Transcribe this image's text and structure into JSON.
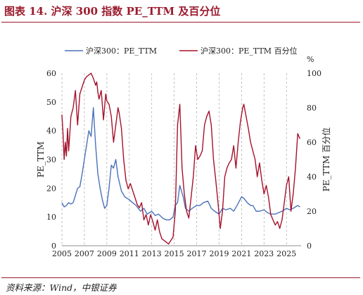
{
  "header": {
    "title": "图表 14. 沪深 300 指数 PE_TTM 及百分位"
  },
  "footer": {
    "source": "资料来源：Wind，中银证券"
  },
  "colors": {
    "accent": "#9b1c2e",
    "pe": "#4a72b8",
    "pct": "#a5122c",
    "grid": "#b3b3b3"
  },
  "chart_data": {
    "type": "line",
    "legend_position": "top-left",
    "grid": true,
    "xlim": [
      2005,
      2026.3
    ],
    "x_ticks": [
      "2005",
      "2007",
      "2009",
      "2011",
      "2013",
      "2015",
      "2017",
      "2019",
      "2021",
      "2023",
      "2025"
    ],
    "ylabel": "PE_TTM",
    "ylim": [
      0,
      60
    ],
    "y_ticks": [
      "0",
      "10",
      "20",
      "30",
      "40",
      "50",
      "60"
    ],
    "y2label": "PE_TTM 百分位",
    "y2unit": "%",
    "y2lim": [
      0,
      100
    ],
    "y2_ticks": [
      "0",
      "20",
      "40",
      "60",
      "80",
      "100"
    ],
    "series": [
      {
        "name": "沪深300：PE_TTM",
        "axis": "left",
        "x": [
          2005.0,
          2005.2,
          2005.4,
          2005.6,
          2005.8,
          2006.0,
          2006.2,
          2006.4,
          2006.6,
          2006.8,
          2007.0,
          2007.2,
          2007.4,
          2007.6,
          2007.8,
          2008.0,
          2008.2,
          2008.4,
          2008.6,
          2008.8,
          2009.0,
          2009.2,
          2009.4,
          2009.6,
          2009.8,
          2010.0,
          2010.3,
          2010.6,
          2011.0,
          2011.3,
          2011.6,
          2012.0,
          2012.3,
          2012.6,
          2013.0,
          2013.3,
          2013.6,
          2014.0,
          2014.3,
          2014.6,
          2014.9,
          2015.1,
          2015.3,
          2015.5,
          2015.8,
          2016.0,
          2016.3,
          2016.6,
          2017.0,
          2017.3,
          2017.6,
          2018.0,
          2018.3,
          2018.6,
          2019.0,
          2019.3,
          2019.6,
          2020.0,
          2020.3,
          2020.6,
          2021.0,
          2021.2,
          2021.5,
          2021.8,
          2022.0,
          2022.3,
          2022.6,
          2023.0,
          2023.3,
          2023.6,
          2024.0,
          2024.3,
          2024.6,
          2024.8,
          2025.0,
          2025.3,
          2025.6,
          2026.0,
          2026.2
        ],
        "values": [
          15,
          13.5,
          14,
          15,
          14.5,
          15,
          17.5,
          20,
          20.5,
          25,
          30,
          35,
          40,
          38,
          48,
          35,
          25,
          20,
          16,
          13,
          14,
          20,
          28,
          27,
          30,
          24,
          19,
          17,
          16,
          15,
          14,
          12,
          13,
          11,
          12,
          10.5,
          11,
          9.5,
          9,
          9,
          10,
          14,
          15,
          21,
          17,
          13,
          12,
          13,
          14,
          14,
          15,
          15.5,
          13,
          12,
          11,
          13,
          12.5,
          13,
          12,
          14,
          17,
          16.5,
          15,
          14,
          14,
          12,
          12,
          12.5,
          11.5,
          11,
          11,
          11.5,
          12,
          12.5,
          13,
          12.5,
          13,
          14,
          13.5
        ]
      },
      {
        "name": "沪深300：PE_TTM 百分位",
        "axis": "right",
        "x": [
          2005.0,
          2005.1,
          2005.2,
          2005.3,
          2005.4,
          2005.5,
          2005.6,
          2005.8,
          2006.0,
          2006.2,
          2006.4,
          2006.6,
          2006.8,
          2007.0,
          2007.2,
          2007.4,
          2007.6,
          2007.8,
          2008.0,
          2008.1,
          2008.2,
          2008.3,
          2008.5,
          2008.7,
          2008.9,
          2009.0,
          2009.2,
          2009.4,
          2009.6,
          2009.8,
          2010.0,
          2010.1,
          2010.3,
          2010.5,
          2010.7,
          2010.9,
          2011.1,
          2011.3,
          2011.5,
          2011.7,
          2011.9,
          2012.1,
          2012.3,
          2012.5,
          2012.7,
          2012.9,
          2013.1,
          2013.3,
          2013.5,
          2013.7,
          2013.9,
          2014.1,
          2014.3,
          2014.5,
          2014.7,
          2014.9,
          2015.1,
          2015.3,
          2015.5,
          2015.7,
          2015.9,
          2016.1,
          2016.3,
          2016.5,
          2016.7,
          2016.9,
          2017.1,
          2017.3,
          2017.5,
          2017.7,
          2017.9,
          2018.1,
          2018.3,
          2018.5,
          2018.7,
          2018.9,
          2019.1,
          2019.3,
          2019.5,
          2019.7,
          2019.9,
          2020.1,
          2020.3,
          2020.5,
          2020.7,
          2020.9,
          2021.1,
          2021.2,
          2021.4,
          2021.6,
          2021.8,
          2022.0,
          2022.2,
          2022.4,
          2022.6,
          2022.8,
          2023.0,
          2023.2,
          2023.4,
          2023.6,
          2023.8,
          2024.0,
          2024.2,
          2024.4,
          2024.6,
          2024.8,
          2025.0,
          2025.2,
          2025.4,
          2025.6,
          2025.8,
          2026.0,
          2026.2
        ],
        "values": [
          76,
          65,
          50,
          60,
          52,
          68,
          55,
          75,
          80,
          90,
          70,
          88,
          92,
          96,
          98,
          99,
          100,
          97,
          93,
          95,
          89,
          85,
          90,
          73,
          88,
          84,
          82,
          75,
          60,
          70,
          80,
          77,
          68,
          50,
          38,
          33,
          36,
          32,
          28,
          24,
          22,
          25,
          15,
          18,
          12,
          18,
          14,
          9,
          15,
          8,
          4,
          3,
          2,
          1,
          3,
          5,
          20,
          70,
          82,
          45,
          30,
          20,
          16,
          28,
          40,
          58,
          50,
          52,
          55,
          70,
          75,
          78,
          70,
          50,
          38,
          25,
          10,
          20,
          40,
          45,
          48,
          50,
          58,
          45,
          60,
          72,
          80,
          82,
          75,
          68,
          60,
          55,
          50,
          40,
          48,
          38,
          30,
          35,
          28,
          18,
          15,
          12,
          14,
          10,
          15,
          25,
          35,
          40,
          20,
          30,
          45,
          65,
          62
        ]
      }
    ]
  }
}
